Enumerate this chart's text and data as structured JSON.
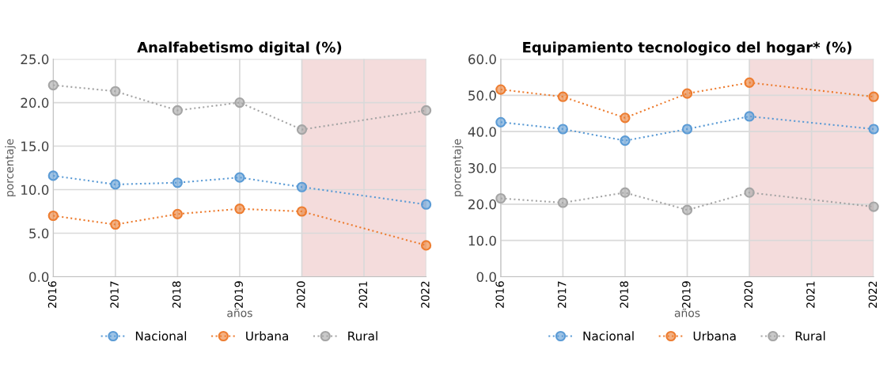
{
  "chart_data": [
    {
      "type": "line",
      "title": "Analfabetismo digital (%)",
      "xlabel": "años",
      "ylabel": "porcentaje",
      "x": [
        2016,
        2017,
        2018,
        2019,
        2020,
        2022
      ],
      "series": [
        {
          "name": "Nacional",
          "color": "#5b9bd5",
          "values": [
            11.6,
            10.6,
            10.8,
            11.4,
            10.3,
            8.3
          ]
        },
        {
          "name": "Urbana",
          "color": "#ed7d31",
          "values": [
            7.0,
            6.0,
            7.2,
            7.8,
            7.5,
            3.6
          ]
        },
        {
          "name": "Rural",
          "color": "#a5a5a5",
          "values": [
            22.0,
            21.3,
            19.1,
            20.0,
            16.9,
            19.1
          ]
        }
      ],
      "xlim": [
        2016,
        2022
      ],
      "xticks": [
        2016,
        2017,
        2018,
        2019,
        2020,
        2021,
        2022
      ],
      "ylim": [
        0,
        25
      ],
      "yticks": [
        {
          "value": 0,
          "label": "0.0"
        },
        {
          "value": 5,
          "label": "5.0"
        },
        {
          "value": 10,
          "label": "10.0"
        },
        {
          "value": 15,
          "label": "15.0"
        },
        {
          "value": 20,
          "label": "20.0"
        },
        {
          "value": 25,
          "label": "25.0"
        }
      ],
      "bands": [
        {
          "axis": "x",
          "from": 2020,
          "to": 2022,
          "color": "#f4dcdc"
        }
      ],
      "grid": true,
      "legend": "bottom",
      "marker": "circle",
      "line_style": "dotted"
    },
    {
      "type": "line",
      "title": "Equipamiento tecnologico del hogar* (%)",
      "xlabel": "años",
      "ylabel": "porcentaje",
      "x": [
        2016,
        2017,
        2018,
        2019,
        2020,
        2022
      ],
      "series": [
        {
          "name": "Nacional",
          "color": "#5b9bd5",
          "values": [
            42.6,
            40.7,
            37.5,
            40.7,
            44.2,
            40.7
          ]
        },
        {
          "name": "Urbana",
          "color": "#ed7d31",
          "values": [
            51.6,
            49.6,
            43.8,
            50.5,
            53.5,
            49.6
          ]
        },
        {
          "name": "Rural",
          "color": "#a5a5a5",
          "values": [
            21.6,
            20.4,
            23.2,
            18.4,
            23.2,
            19.3
          ]
        }
      ],
      "xlim": [
        2016,
        2022
      ],
      "xticks": [
        2016,
        2017,
        2018,
        2019,
        2020,
        2021,
        2022
      ],
      "ylim": [
        0,
        60
      ],
      "yticks": [
        {
          "value": 0,
          "label": "0.0"
        },
        {
          "value": 10,
          "label": "10.0"
        },
        {
          "value": 20,
          "label": "20.0"
        },
        {
          "value": 30,
          "label": "30.0"
        },
        {
          "value": 40,
          "label": "40.0"
        },
        {
          "value": 50,
          "label": "50.0"
        },
        {
          "value": 60,
          "label": "60.0"
        }
      ],
      "bands": [
        {
          "axis": "x",
          "from": 2020,
          "to": 2022,
          "color": "#f4dcdc"
        }
      ],
      "grid": true,
      "legend": "bottom",
      "marker": "circle",
      "line_style": "dotted"
    }
  ]
}
